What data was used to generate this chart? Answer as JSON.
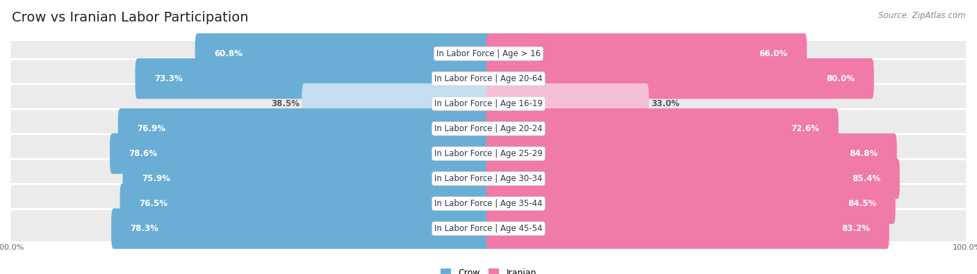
{
  "title": "Crow vs Iranian Labor Participation",
  "source": "Source: ZipAtlas.com",
  "categories": [
    "In Labor Force | Age > 16",
    "In Labor Force | Age 20-64",
    "In Labor Force | Age 16-19",
    "In Labor Force | Age 20-24",
    "In Labor Force | Age 25-29",
    "In Labor Force | Age 30-34",
    "In Labor Force | Age 35-44",
    "In Labor Force | Age 45-54"
  ],
  "crow_values": [
    60.8,
    73.3,
    38.5,
    76.9,
    78.6,
    75.9,
    76.5,
    78.3
  ],
  "iranian_values": [
    66.0,
    80.0,
    33.0,
    72.6,
    84.8,
    85.4,
    84.5,
    83.2
  ],
  "crow_color_strong": "#6aaed6",
  "crow_color_light": "#c5dff0",
  "iranian_color_strong": "#f07aa8",
  "iranian_color_light": "#f5c0d5",
  "row_bg_color": "#ebebeb",
  "max_value": 100.0,
  "bar_height": 0.62,
  "title_fontsize": 14,
  "label_fontsize": 8.5,
  "value_fontsize": 8.5,
  "legend_fontsize": 9,
  "axis_label_fontsize": 8,
  "light_threshold": 50
}
